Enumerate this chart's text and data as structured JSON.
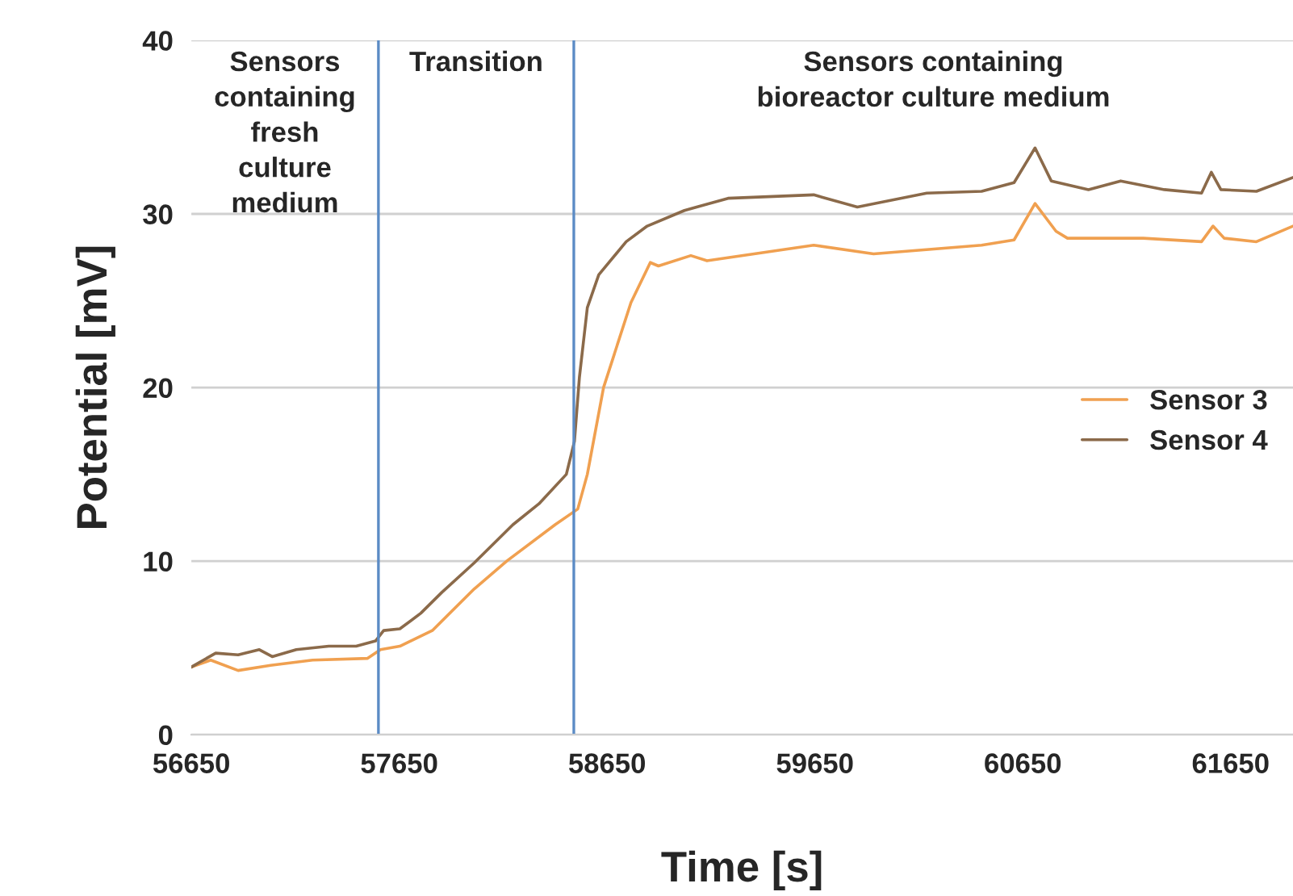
{
  "chart_data": {
    "type": "line",
    "xlabel": "Time [s]",
    "ylabel": "Potential [mV]",
    "xlim": [
      56650,
      61950
    ],
    "xticks": [
      56650,
      57650,
      58650,
      59650,
      60650,
      61650
    ],
    "ylim": [
      0,
      40
    ],
    "yticks": [
      0,
      10,
      20,
      30,
      40
    ],
    "grid": "y",
    "legend": "right",
    "line_style": "solid",
    "marker": "none",
    "ref_lines": [
      {
        "axis": "x",
        "value": 57550,
        "color": "#5b8bc5"
      },
      {
        "axis": "x",
        "value": 58490,
        "color": "#5b8bc5"
      }
    ],
    "annotations": [
      "Sensors\ncontaining\nfresh\nculture\nmedium",
      "Transition",
      "Sensors containing\nbioreactor culture medium"
    ],
    "series": [
      {
        "name": "Sensor 3",
        "color": "#f0a050",
        "x": [
          56650,
          56743,
          56875,
          57031,
          57233,
          57498,
          57560,
          57653,
          57809,
          58011,
          58167,
          58400,
          58509,
          58555,
          58633,
          58765,
          58858,
          58897,
          59053,
          59131,
          59644,
          59932,
          60452,
          60608,
          60709,
          60810,
          60865,
          61230,
          61510,
          61565,
          61619,
          61774,
          61950
        ],
        "values": [
          3.9,
          4.3,
          3.7,
          4.0,
          4.3,
          4.4,
          4.9,
          5.1,
          6.0,
          8.4,
          10.0,
          12.1,
          13.0,
          15.0,
          20.0,
          24.9,
          27.2,
          27.0,
          27.6,
          27.3,
          28.2,
          27.7,
          28.2,
          28.5,
          30.6,
          29.0,
          28.6,
          28.6,
          28.4,
          29.3,
          28.6,
          28.4,
          29.3
        ]
      },
      {
        "name": "Sensor 4",
        "color": "#8b6a4a",
        "x": [
          56650,
          56767,
          56875,
          56977,
          57039,
          57155,
          57311,
          57443,
          57536,
          57575,
          57653,
          57754,
          57855,
          58011,
          58197,
          58322,
          58454,
          58493,
          58517,
          58555,
          58610,
          58742,
          58843,
          59022,
          59232,
          59644,
          59854,
          60188,
          60452,
          60608,
          60709,
          60787,
          60966,
          61121,
          61331,
          61510,
          61557,
          61603,
          61774,
          61950
        ],
        "values": [
          3.9,
          4.7,
          4.6,
          4.9,
          4.5,
          4.9,
          5.1,
          5.1,
          5.4,
          6.0,
          6.1,
          7.0,
          8.2,
          9.9,
          12.1,
          13.3,
          15.0,
          16.9,
          20.6,
          24.6,
          26.5,
          28.4,
          29.3,
          30.2,
          30.9,
          31.1,
          30.4,
          31.2,
          31.3,
          31.8,
          33.8,
          31.9,
          31.4,
          31.9,
          31.4,
          31.2,
          32.4,
          31.4,
          31.3,
          32.1
        ]
      }
    ]
  }
}
